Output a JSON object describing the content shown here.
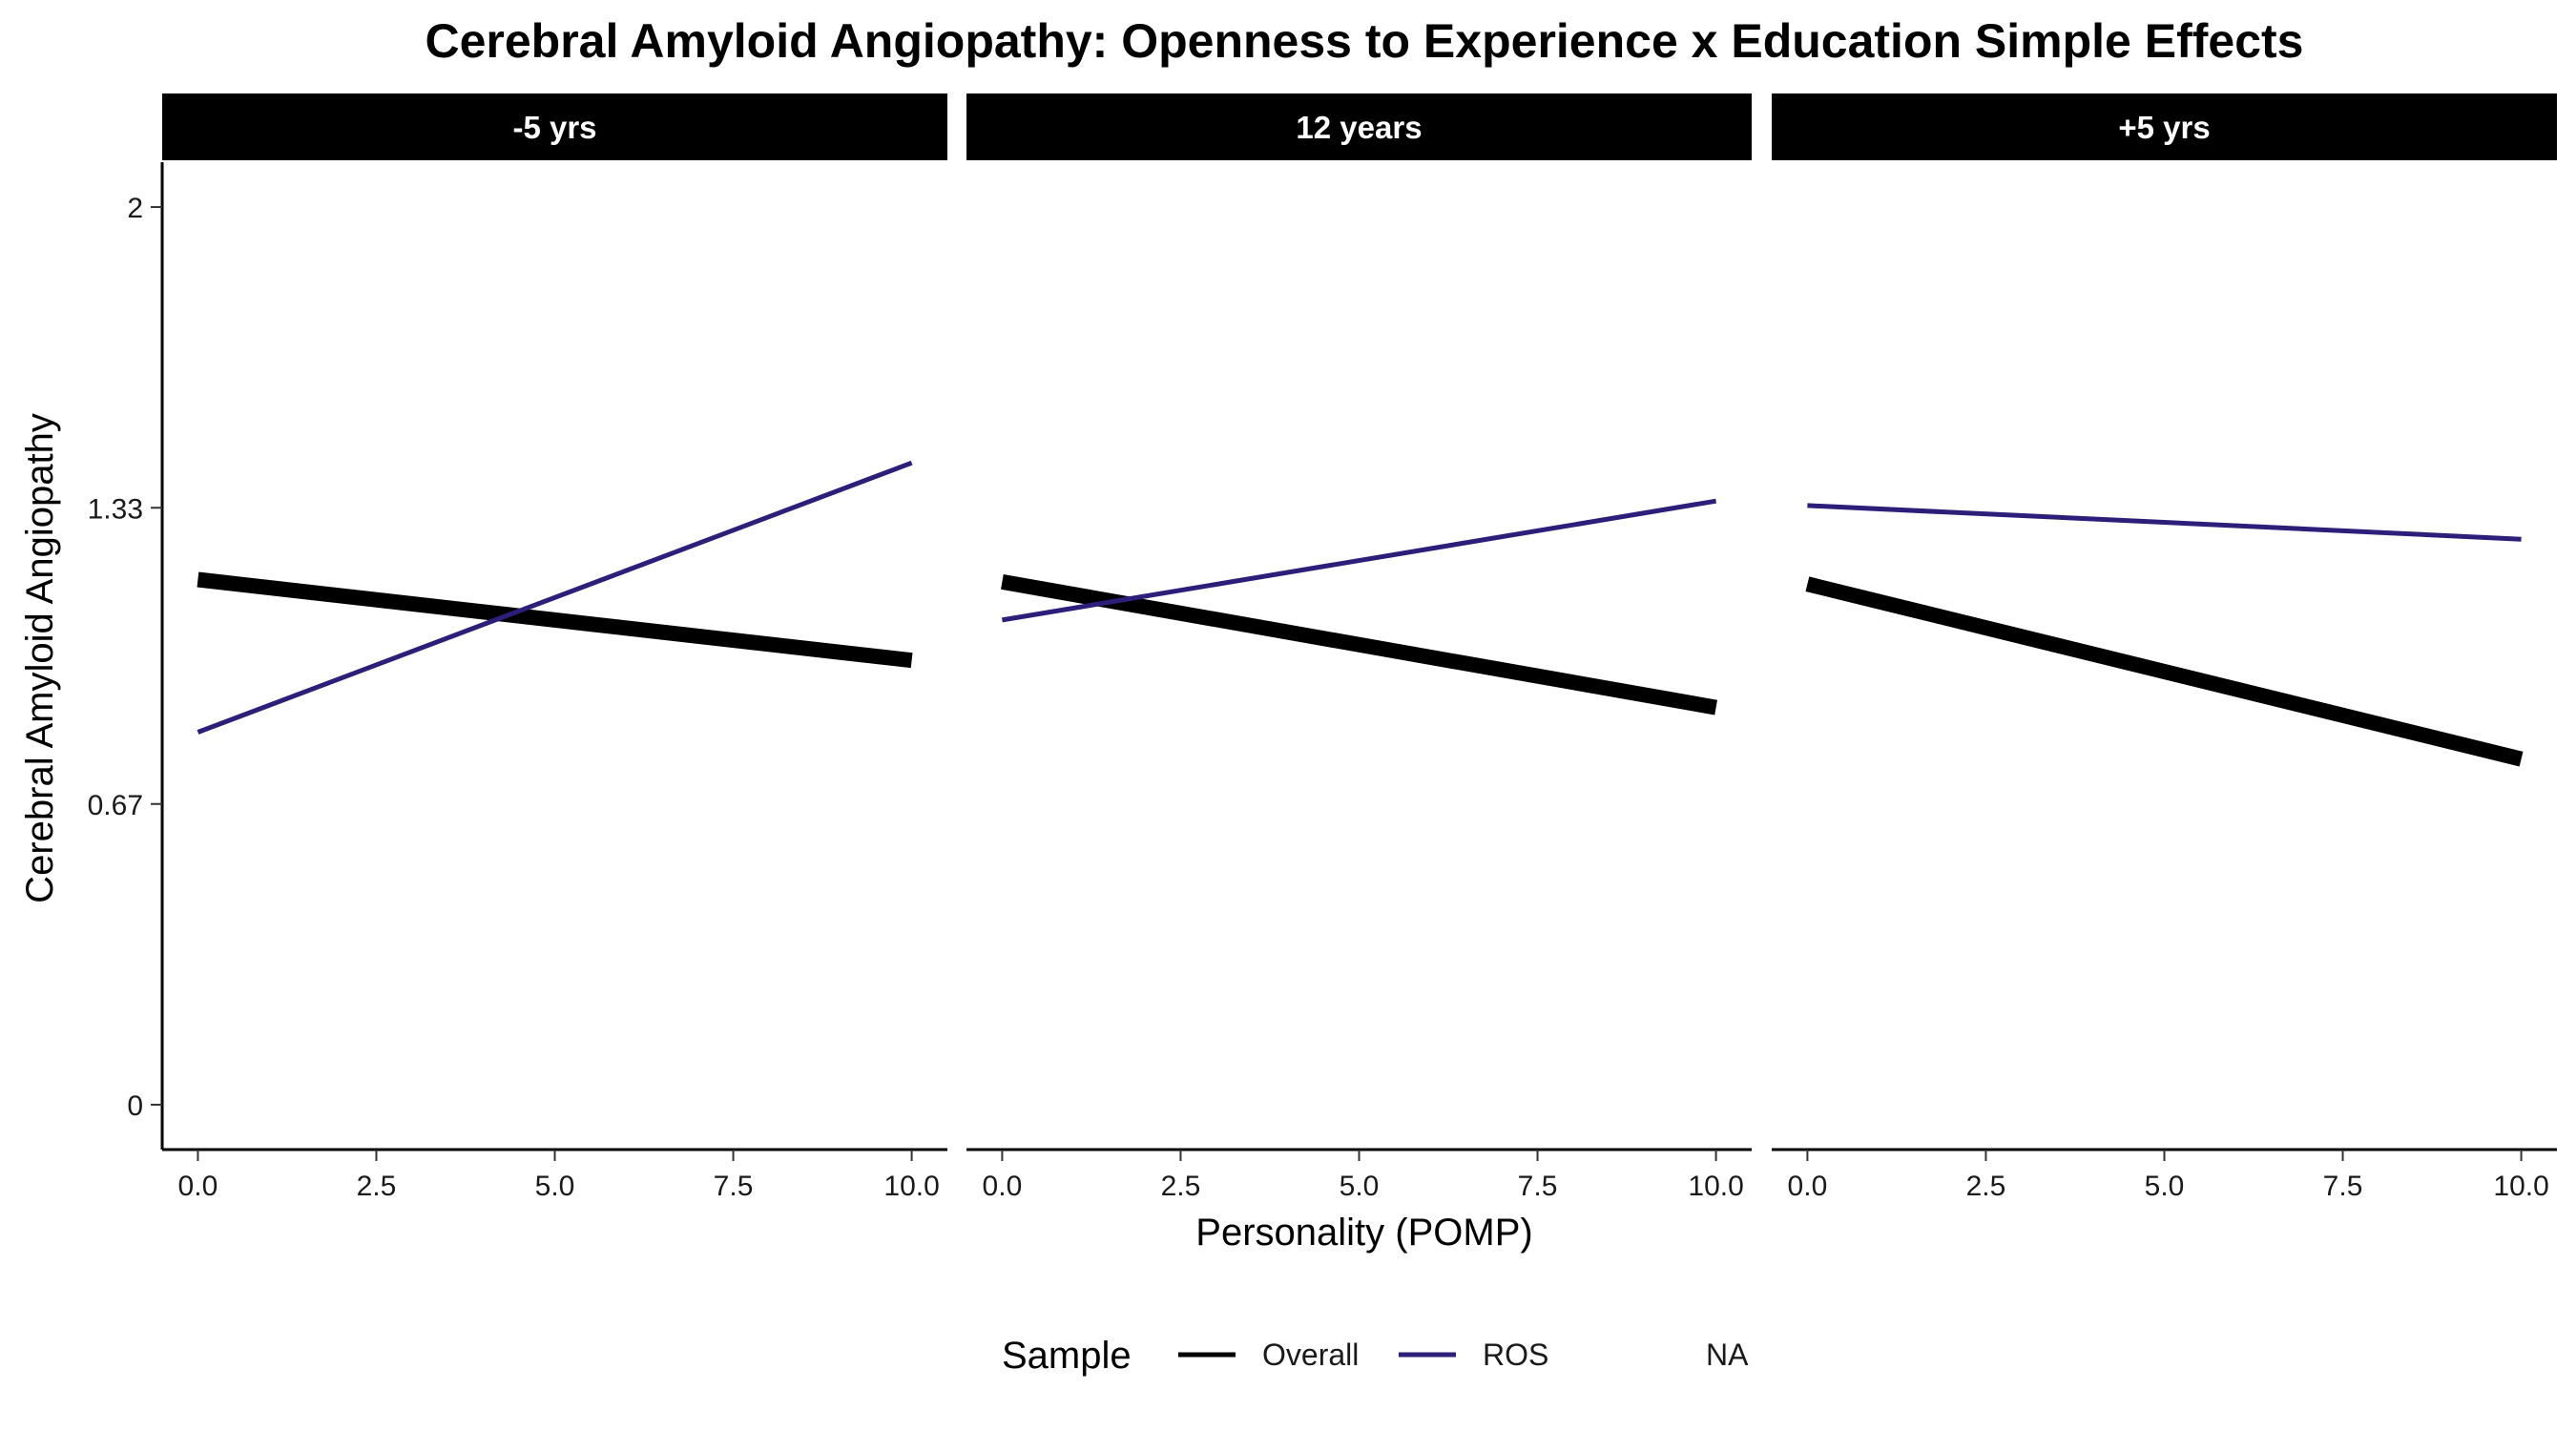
{
  "chart_data": {
    "type": "line",
    "title": "Cerebral Amyloid Angiopathy: Openness to Experience x Education Simple Effects",
    "xlabel": "Personality (POMP)",
    "ylabel": "Cerebral Amyloid Angiopathy",
    "xlim": [
      -0.5,
      10.5
    ],
    "ylim": [
      -0.1,
      2.1
    ],
    "x_ticks": [
      0,
      2.5,
      5,
      7.5,
      10
    ],
    "x_tick_labels": [
      "0.0",
      "2.5",
      "5.0",
      "7.5",
      "10.0"
    ],
    "y_ticks": [
      0,
      0.67,
      1.33,
      2
    ],
    "y_tick_labels": [
      "0",
      "0.67",
      "1.33",
      "2"
    ],
    "grid": false,
    "legend": {
      "title": "Sample",
      "position": "bottom",
      "entries": [
        {
          "label": "Overall",
          "color": "#000000"
        },
        {
          "label": "ROS",
          "color": "#2d1e7a"
        },
        {
          "label": "NA",
          "color": "#ffffff"
        }
      ]
    },
    "panels": [
      {
        "label": "-5 yrs",
        "series": [
          {
            "name": "Overall",
            "x": [
              0,
              10
            ],
            "y": [
              1.17,
              0.99
            ]
          },
          {
            "name": "ROS",
            "x": [
              0,
              10
            ],
            "y": [
              0.83,
              1.43
            ]
          }
        ]
      },
      {
        "label": "12 years",
        "series": [
          {
            "name": "Overall",
            "x": [
              0,
              10
            ],
            "y": [
              1.165,
              0.885
            ]
          },
          {
            "name": "ROS",
            "x": [
              0,
              10
            ],
            "y": [
              1.08,
              1.345
            ]
          }
        ]
      },
      {
        "label": "+5 yrs",
        "series": [
          {
            "name": "Overall",
            "x": [
              0,
              10
            ],
            "y": [
              1.16,
              0.77
            ]
          },
          {
            "name": "ROS",
            "x": [
              0,
              10
            ],
            "y": [
              1.335,
              1.26
            ]
          }
        ]
      }
    ]
  }
}
